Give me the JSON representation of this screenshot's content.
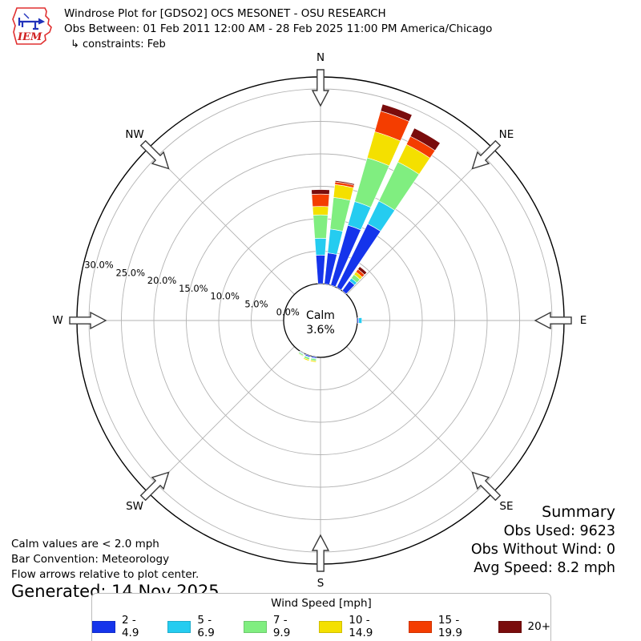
{
  "header": {
    "title": "Windrose Plot for [GDSO2] OCS MESONET - OSU RESEARCH",
    "subtitle": "Obs Between: 01 Feb 2011 12:00 AM - 28 Feb 2025 11:00 PM America/Chicago",
    "constraints": "↳ constraints: Feb"
  },
  "logo": {
    "text": "IEM"
  },
  "chart_data": {
    "type": "windrose",
    "units": "mph",
    "title": "Windrose Plot for [GDSO2] OCS MESONET - OSU RESEARCH",
    "bar_convention": "Meteorology",
    "sector_width_deg": 10,
    "direction_labels": [
      "N",
      "NE",
      "E",
      "SE",
      "S",
      "SW",
      "W",
      "NW"
    ],
    "direction_azimuths_deg": [
      0,
      45,
      90,
      135,
      180,
      225,
      270,
      315
    ],
    "ring_ticks_pct": [
      0,
      5,
      10,
      15,
      20,
      25,
      30
    ],
    "ring_tick_labels": [
      "0.0%",
      "5.0%",
      "10.0%",
      "15.0%",
      "20.0%",
      "25.0%",
      "30.0%"
    ],
    "rmax_pct": 31.8,
    "grid": true,
    "calm": {
      "label": "Calm",
      "value_label": "3.6%",
      "pct": 3.6,
      "threshold_note": "Calm values are < 2.0 mph"
    },
    "speed_bins": [
      {
        "label": "2 - 4.9",
        "color": "#1534eb"
      },
      {
        "label": "5 - 6.9",
        "color": "#25ccf0"
      },
      {
        "label": "7 - 9.9",
        "color": "#80ee80"
      },
      {
        "label": "10 - 14.9",
        "color": "#f4e000"
      },
      {
        "label": "15 - 19.9",
        "color": "#f43d00"
      },
      {
        "label": "20+",
        "color": "#7a0c0c"
      }
    ],
    "bars": [
      {
        "dir_deg": 0,
        "segments_pct": [
          4.4,
          2.6,
          3.6,
          1.3,
          1.9,
          0.7
        ],
        "total_pct": 14.5
      },
      {
        "dir_deg": 10,
        "segments_pct": [
          4.8,
          3.7,
          4.9,
          2.0,
          0.4,
          0.2
        ],
        "total_pct": 16.0
      },
      {
        "dir_deg": 20,
        "segments_pct": [
          9.6,
          3.8,
          7.0,
          4.2,
          3.3,
          1.1
        ],
        "total_pct": 29.0
      },
      {
        "dir_deg": 30,
        "segments_pct": [
          10.9,
          3.9,
          6.7,
          3.0,
          1.4,
          1.4
        ],
        "total_pct": 27.3
      },
      {
        "dir_deg": 40,
        "segments_pct": [
          1.9,
          0.5,
          0.7,
          0.5,
          0.5,
          0.5
        ],
        "total_pct": 4.6
      },
      {
        "dir_deg": 90,
        "segments_pct": [
          0.2,
          0.5,
          0.0,
          0.0,
          0.0,
          0.0
        ],
        "total_pct": 0.7
      },
      {
        "dir_deg": 190,
        "segments_pct": [
          0.2,
          0.1,
          0.3,
          0.2,
          0.0,
          0.0
        ],
        "total_pct": 0.8
      },
      {
        "dir_deg": 200,
        "segments_pct": [
          0.2,
          0.1,
          0.3,
          0.2,
          0.0,
          0.0
        ],
        "total_pct": 0.8
      },
      {
        "dir_deg": 210,
        "segments_pct": [
          0.1,
          0.1,
          0.2,
          0.1,
          0.0,
          0.0
        ],
        "total_pct": 0.5
      }
    ]
  },
  "annotations": {
    "calm_note": "Calm values are < 2.0 mph",
    "bar_convention": "Bar Convention: Meteorology",
    "flow_note": "Flow arrows relative to plot center.",
    "generated": "Generated: 14 Nov 2025"
  },
  "summary": {
    "title": "Summary",
    "lines": [
      "Obs Used: 9623",
      "Obs Without Wind: 0",
      "Avg Speed: 8.2 mph"
    ]
  },
  "legend": {
    "title": "Wind Speed [mph]"
  }
}
